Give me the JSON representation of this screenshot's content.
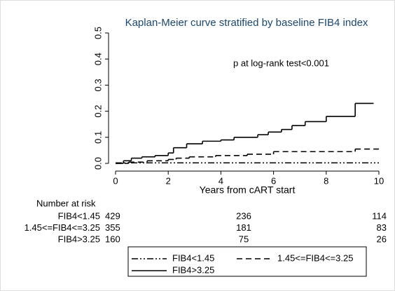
{
  "chart_data": {
    "type": "step",
    "title": "Kaplan-Meier curve stratified by baseline FIB4 index",
    "annotation": "p at log-rank test<0.001",
    "xlabel": "Years from cART start",
    "xlim": [
      0,
      10
    ],
    "xticks": [
      0,
      2,
      4,
      6,
      8,
      10
    ],
    "ylim": [
      0,
      0.5
    ],
    "yticks": [
      {
        "value": 0,
        "label": "0.0"
      },
      0.1,
      0.2,
      0.3,
      0.4,
      0.5
    ],
    "series": [
      {
        "name": "FIB4<1.45",
        "color": "#000000",
        "dash": "dashdot",
        "x": [
          0,
          10
        ],
        "values": [
          0.002,
          0.002
        ]
      },
      {
        "name": "1.45<=FIB4<=3.25",
        "color": "#000000",
        "dash": "dashed",
        "x": [
          0,
          0.5,
          1.2,
          2.0,
          2.3,
          2.8,
          3.8,
          5.0,
          6.0,
          9.1,
          10
        ],
        "values": [
          0,
          0.005,
          0.01,
          0.015,
          0.02,
          0.025,
          0.03,
          0.035,
          0.045,
          0.055,
          0.055
        ]
      },
      {
        "name": "FIB4>3.25",
        "color": "#000000",
        "dash": "solid",
        "x": [
          0,
          0.3,
          0.6,
          1.0,
          1.5,
          2.0,
          2.2,
          2.7,
          3.3,
          4.0,
          4.5,
          5.4,
          5.8,
          6.3,
          6.7,
          7.2,
          8.0,
          9.1,
          9.8
        ],
        "values": [
          0,
          0.01,
          0.02,
          0.025,
          0.03,
          0.04,
          0.06,
          0.075,
          0.085,
          0.09,
          0.1,
          0.11,
          0.12,
          0.13,
          0.145,
          0.16,
          0.18,
          0.23,
          0.23
        ]
      }
    ],
    "risk_table": {
      "title": "Number at risk",
      "rows": [
        {
          "label": "FIB4<1.45",
          "counts": [
            429,
            236,
            114
          ]
        },
        {
          "label": "1.45<=FIB4<=3.25",
          "counts": [
            355,
            181,
            83
          ]
        },
        {
          "label": "FIB4>3.25",
          "counts": [
            160,
            75,
            26
          ]
        }
      ]
    }
  }
}
